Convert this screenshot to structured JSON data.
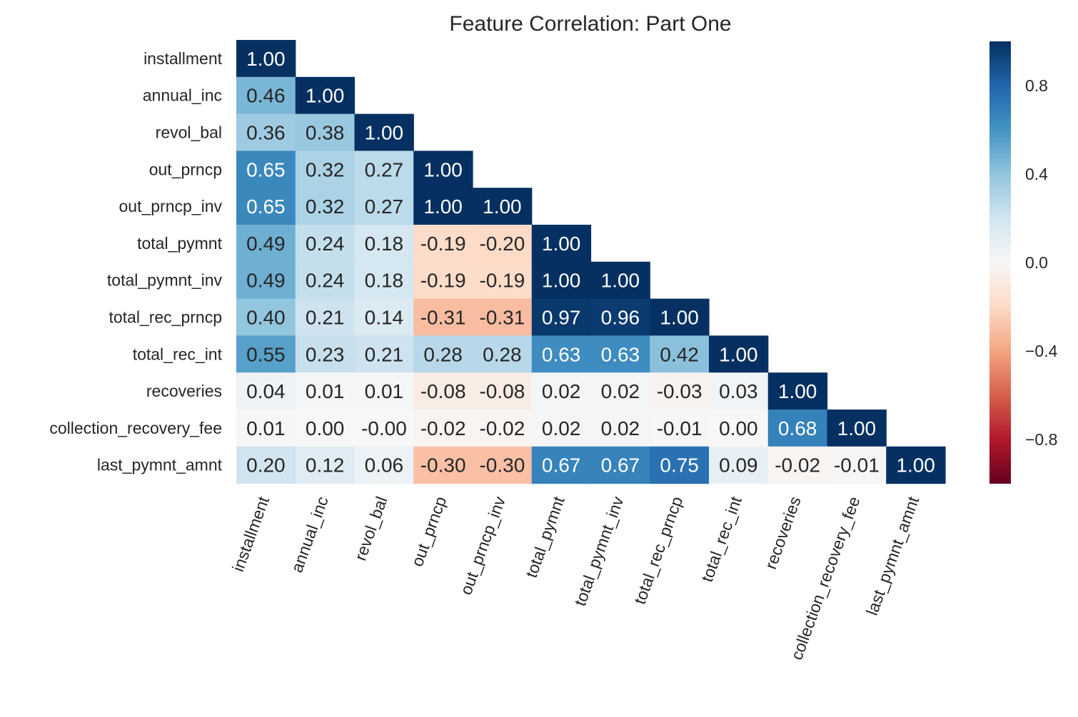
{
  "chart_data": {
    "type": "heatmap",
    "title": "Feature Correlation: Part One",
    "xlabel": "",
    "ylabel": "",
    "labels": [
      "installment",
      "annual_inc",
      "revol_bal",
      "out_prncp",
      "out_prncp_inv",
      "total_pymnt",
      "total_pymnt_inv",
      "total_rec_prncp",
      "total_rec_int",
      "recoveries",
      "collection_recovery_fee",
      "last_pymnt_amnt"
    ],
    "matrix": [
      [
        "1.00"
      ],
      [
        "0.46",
        "1.00"
      ],
      [
        "0.36",
        "0.38",
        "1.00"
      ],
      [
        "0.65",
        "0.32",
        "0.27",
        "1.00"
      ],
      [
        "0.65",
        "0.32",
        "0.27",
        "1.00",
        "1.00"
      ],
      [
        "0.49",
        "0.24",
        "0.18",
        "-0.19",
        "-0.20",
        "1.00"
      ],
      [
        "0.49",
        "0.24",
        "0.18",
        "-0.19",
        "-0.19",
        "1.00",
        "1.00"
      ],
      [
        "0.40",
        "0.21",
        "0.14",
        "-0.31",
        "-0.31",
        "0.97",
        "0.96",
        "1.00"
      ],
      [
        "0.55",
        "0.23",
        "0.21",
        "0.28",
        "0.28",
        "0.63",
        "0.63",
        "0.42",
        "1.00"
      ],
      [
        "0.04",
        "0.01",
        "0.01",
        "-0.08",
        "-0.08",
        "0.02",
        "0.02",
        "-0.03",
        "0.03",
        "1.00"
      ],
      [
        "0.01",
        "0.00",
        "-0.00",
        "-0.02",
        "-0.02",
        "0.02",
        "0.02",
        "-0.01",
        "0.00",
        "0.68",
        "1.00"
      ],
      [
        "0.20",
        "0.12",
        "0.06",
        "-0.30",
        "-0.30",
        "0.67",
        "0.67",
        "0.75",
        "0.09",
        "-0.02",
        "-0.01",
        "1.00"
      ]
    ],
    "mask": "upper-triangle",
    "value_range": [
      -1,
      1
    ],
    "colormap": "RdBu",
    "colorbar": {
      "ticks": [
        "0.8",
        "0.4",
        "0.0",
        "−0.4",
        "−0.8"
      ],
      "tick_values": [
        0.8,
        0.4,
        0.0,
        -0.4,
        -0.8
      ]
    },
    "grid": false,
    "legend": "none"
  }
}
